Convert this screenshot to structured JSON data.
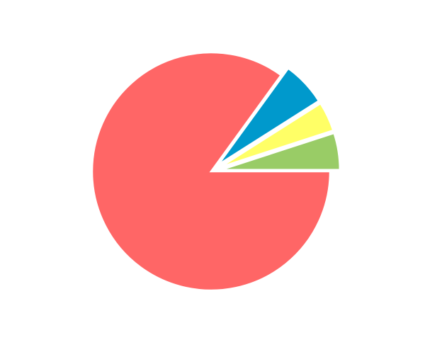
{
  "chart_data": {
    "type": "pie",
    "title": "",
    "legend": "none",
    "start_angle_deg": 0,
    "direction": "counterclockwise",
    "slices": [
      {
        "value": 5,
        "color": "#99CC66",
        "exploded": true
      },
      {
        "value": 4,
        "color": "#FFFF66",
        "exploded": true
      },
      {
        "value": 6,
        "color": "#0099CC",
        "exploded": true
      },
      {
        "value": 85,
        "color": "#FF6666",
        "exploded": false
      }
    ]
  }
}
